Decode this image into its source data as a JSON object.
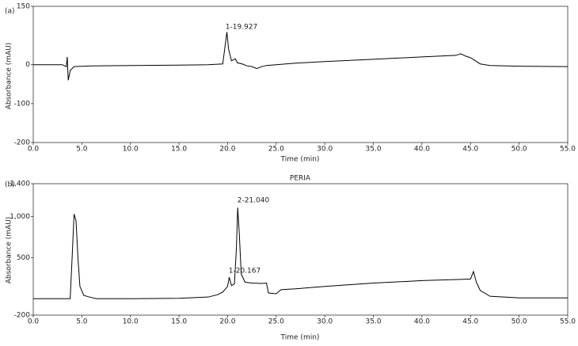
{
  "chart_data": [
    {
      "type": "line",
      "panel_label": "(a)",
      "ylabel": "Absorbance (mAU)",
      "xlabel": "Time (min)",
      "annotations": [
        "1-19.927"
      ],
      "color": "#000000",
      "xlim": [
        0,
        55
      ],
      "ylim": [
        -200,
        150
      ],
      "xticks": [
        {
          "value": 0,
          "label": "0.0"
        },
        {
          "value": 5,
          "label": "5.0"
        },
        {
          "value": 10,
          "label": "10.0"
        },
        {
          "value": 15,
          "label": "15.0"
        },
        {
          "value": 20,
          "label": "20.0"
        },
        {
          "value": 25,
          "label": "25.0"
        },
        {
          "value": 30,
          "label": "30.0"
        },
        {
          "value": 35,
          "label": "35.0"
        },
        {
          "value": 40,
          "label": "40.0"
        },
        {
          "value": 45,
          "label": "45.0"
        },
        {
          "value": 50,
          "label": "50.0"
        },
        {
          "value": 55,
          "label": "55.0"
        }
      ],
      "yticks": [
        150,
        0,
        -100,
        -200
      ],
      "x": [
        0,
        3.0,
        3.4,
        3.5,
        3.6,
        3.8,
        4.2,
        6,
        10,
        15,
        18,
        19.5,
        19.7,
        19.927,
        20.1,
        20.4,
        20.8,
        21,
        21.5,
        22,
        22.5,
        23,
        23.5,
        24,
        27,
        30,
        35,
        40,
        43.5,
        44,
        44.5,
        45,
        45.5,
        46,
        47,
        50,
        55
      ],
      "values": [
        0,
        0,
        -5,
        20,
        -40,
        -15,
        -5,
        -3,
        -2,
        -1,
        0,
        2,
        40,
        84,
        40,
        10,
        15,
        5,
        2,
        -3,
        -5,
        -10,
        -5,
        -2,
        4,
        8,
        14,
        20,
        24,
        28,
        22,
        18,
        10,
        2,
        -2,
        -4,
        -5
      ]
    },
    {
      "type": "line",
      "panel_label": "(b)",
      "title": "PERIA",
      "ylabel": "Absorbance (mAU)",
      "xlabel": "Time (min)",
      "annotations": [
        "2-21.040",
        "1-20.167"
      ],
      "color": "#000000",
      "xlim": [
        0,
        55
      ],
      "ylim": [
        -200,
        1400
      ],
      "xticks": [
        {
          "value": 0,
          "label": "0.0"
        },
        {
          "value": 5,
          "label": "5.0"
        },
        {
          "value": 10,
          "label": "10.0"
        },
        {
          "value": 15,
          "label": "15.0"
        },
        {
          "value": 20,
          "label": "20.0"
        },
        {
          "value": 25,
          "label": "25.0"
        },
        {
          "value": 30,
          "label": "30.0"
        },
        {
          "value": 35,
          "label": "35.0"
        },
        {
          "value": 40,
          "label": "40.0"
        },
        {
          "value": 45,
          "label": "45.0"
        },
        {
          "value": 50,
          "label": "50.0"
        },
        {
          "value": 55,
          "label": "55.0"
        }
      ],
      "yticks": [
        {
          "value": 1400,
          "label": "1,400"
        },
        {
          "value": 1000,
          "label": "1,000"
        },
        500,
        -200
      ],
      "x": [
        0,
        3.8,
        4.0,
        4.2,
        4.4,
        4.6,
        4.8,
        5.2,
        5.8,
        6.5,
        10,
        15,
        18,
        19,
        19.5,
        20.0,
        20.167,
        20.4,
        20.7,
        20.9,
        21.04,
        21.2,
        21.4,
        21.8,
        22.5,
        23.5,
        24.0,
        24.2,
        25,
        25.5,
        27,
        30,
        35,
        40,
        44,
        45,
        45.3,
        45.6,
        46,
        47,
        50,
        55
      ],
      "values": [
        0,
        0,
        500,
        1030,
        950,
        500,
        150,
        40,
        20,
        0,
        0,
        5,
        20,
        50,
        80,
        150,
        260,
        160,
        180,
        600,
        1108,
        800,
        300,
        200,
        190,
        185,
        190,
        70,
        60,
        110,
        120,
        150,
        190,
        220,
        235,
        240,
        330,
        200,
        100,
        30,
        10,
        10
      ]
    }
  ]
}
